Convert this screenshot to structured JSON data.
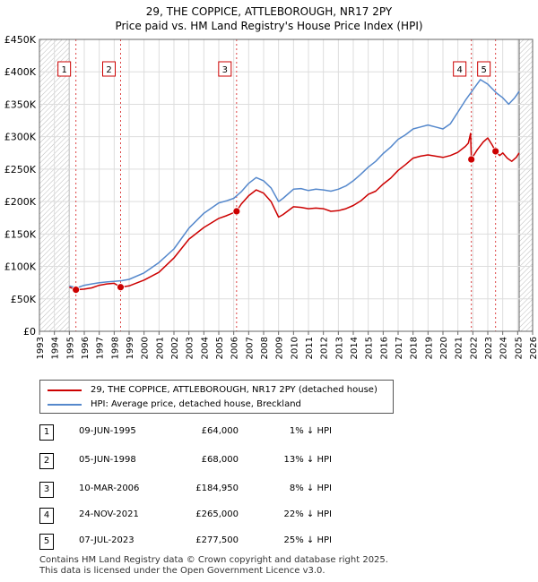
{
  "chart_data": {
    "type": "line",
    "title": "29, THE COPPICE, ATTLEBOROUGH, NR17 2PY",
    "subtitle": "Price paid vs. HM Land Registry's House Price Index (HPI)",
    "xlabel": "",
    "ylabel": "",
    "xlim": [
      1993,
      2026
    ],
    "ylim": [
      0,
      450000
    ],
    "y_ticks": [
      0,
      50000,
      100000,
      150000,
      200000,
      250000,
      300000,
      350000,
      400000,
      450000
    ],
    "y_tick_labels": [
      "£0",
      "£50K",
      "£100K",
      "£150K",
      "£200K",
      "£250K",
      "£300K",
      "£350K",
      "£400K",
      "£450K"
    ],
    "x_ticks": [
      "1993",
      "1994",
      "1995",
      "1996",
      "1997",
      "1998",
      "1999",
      "2000",
      "2001",
      "2002",
      "2003",
      "2004",
      "2005",
      "2006",
      "2007",
      "2008",
      "2009",
      "2010",
      "2011",
      "2012",
      "2013",
      "2014",
      "2015",
      "2016",
      "2017",
      "2018",
      "2019",
      "2020",
      "2021",
      "2022",
      "2023",
      "2024",
      "2025",
      "2026"
    ],
    "grid": true,
    "hatched_ranges": [
      [
        1993,
        1995.0
      ],
      [
        2025.1,
        2026
      ]
    ],
    "series": [
      {
        "name": "29, THE COPPICE, ATTLEBOROUGH, NR17 2PY (detached house)",
        "color": "#cc0000",
        "x": [
          1995.0,
          1995.44,
          1996.0,
          1996.5,
          1997.0,
          1997.5,
          1998.0,
          1998.43,
          1999.0,
          2000.0,
          2001.0,
          2002.0,
          2003.0,
          2004.0,
          2005.0,
          2005.5,
          2006.0,
          2006.19,
          2006.5,
          2007.0,
          2007.5,
          2008.0,
          2008.5,
          2009.0,
          2009.3,
          2010.0,
          2010.5,
          2011.0,
          2011.5,
          2012.0,
          2012.5,
          2013.0,
          2013.5,
          2014.0,
          2014.5,
          2015.0,
          2015.5,
          2016.0,
          2016.5,
          2017.0,
          2017.5,
          2018.0,
          2018.5,
          2019.0,
          2019.5,
          2020.0,
          2020.5,
          2021.0,
          2021.5,
          2021.7,
          2021.85,
          2021.9,
          2022.0,
          2022.3,
          2022.7,
          2023.0,
          2023.3,
          2023.52,
          2023.8,
          2024.0,
          2024.3,
          2024.6,
          2024.9,
          2025.1
        ],
        "values": [
          68000,
          64000,
          65000,
          67000,
          71000,
          73000,
          74000,
          68000,
          70000,
          79000,
          91000,
          113000,
          142000,
          160000,
          174000,
          178000,
          183000,
          184950,
          196000,
          209000,
          218000,
          213000,
          200000,
          176000,
          180000,
          192000,
          191000,
          189000,
          190000,
          189000,
          185000,
          186000,
          189000,
          194000,
          201000,
          211000,
          216000,
          227000,
          236000,
          248000,
          257000,
          267000,
          270000,
          272000,
          270000,
          268000,
          271000,
          276000,
          285000,
          290000,
          305000,
          265000,
          269000,
          280000,
          292000,
          298000,
          287000,
          277500,
          271000,
          275000,
          267000,
          262000,
          268000,
          275000
        ]
      },
      {
        "name": "HPI: Average price, detached house, Breckland",
        "color": "#5588cc",
        "x": [
          1995.0,
          1995.5,
          1996.0,
          1996.5,
          1997.0,
          1997.5,
          1998.0,
          1998.5,
          1999.0,
          2000.0,
          2001.0,
          2002.0,
          2003.0,
          2004.0,
          2005.0,
          2005.5,
          2006.0,
          2006.5,
          2007.0,
          2007.5,
          2008.0,
          2008.5,
          2009.0,
          2009.3,
          2010.0,
          2010.5,
          2011.0,
          2011.5,
          2012.0,
          2012.5,
          2013.0,
          2013.5,
          2014.0,
          2014.5,
          2015.0,
          2015.5,
          2016.0,
          2016.5,
          2017.0,
          2017.5,
          2018.0,
          2018.5,
          2019.0,
          2019.5,
          2020.0,
          2020.5,
          2021.0,
          2021.5,
          2022.0,
          2022.5,
          2023.0,
          2023.3,
          2023.6,
          2024.0,
          2024.4,
          2024.8,
          2025.1
        ],
        "values": [
          70000,
          67000,
          71000,
          73000,
          75000,
          76000,
          77000,
          78000,
          80000,
          90000,
          106000,
          127000,
          159000,
          182000,
          198000,
          201000,
          205000,
          215000,
          228000,
          237000,
          232000,
          221000,
          200000,
          205000,
          219000,
          220000,
          217000,
          219000,
          218000,
          216000,
          219000,
          224000,
          232000,
          242000,
          253000,
          262000,
          274000,
          284000,
          296000,
          303000,
          312000,
          315000,
          318000,
          315000,
          312000,
          320000,
          338000,
          356000,
          372000,
          388000,
          381000,
          374000,
          367000,
          360000,
          350000,
          360000,
          370000
        ]
      }
    ],
    "transactions": [
      {
        "id": "1",
        "date": "09-JUN-1995",
        "year": 1995.44,
        "price": 64000,
        "price_label": "£64,000",
        "hpi": "1% ↓ HPI"
      },
      {
        "id": "2",
        "date": "05-JUN-1998",
        "year": 1998.43,
        "price": 68000,
        "price_label": "£68,000",
        "hpi": "13% ↓ HPI"
      },
      {
        "id": "3",
        "date": "10-MAR-2006",
        "year": 2006.19,
        "price": 184950,
        "price_label": "£184,950",
        "hpi": "8% ↓ HPI"
      },
      {
        "id": "4",
        "date": "24-NOV-2021",
        "year": 2021.9,
        "price": 265000,
        "price_label": "£265,000",
        "hpi": "22% ↓ HPI"
      },
      {
        "id": "5",
        "date": "07-JUL-2023",
        "year": 2023.52,
        "price": 277500,
        "price_label": "£277,500",
        "hpi": "25% ↓ HPI"
      }
    ]
  },
  "legend": {
    "property_label": "29, THE COPPICE, ATTLEBOROUGH, NR17 2PY (detached house)",
    "hpi_label": "HPI: Average price, detached house, Breckland"
  },
  "footer": {
    "line1": "Contains HM Land Registry data © Crown copyright and database right 2025.",
    "line2": "This data is licensed under the Open Government Licence v3.0."
  }
}
